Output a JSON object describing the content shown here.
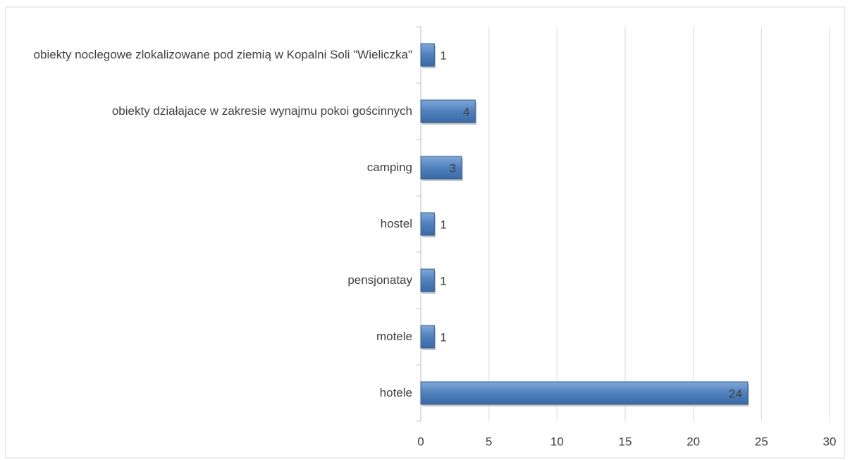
{
  "chart_data": {
    "type": "bar",
    "orientation": "horizontal",
    "categories": [
      "hotele",
      "motele",
      "pensjonatay",
      "hostel",
      "camping",
      "obiekty działajace w zakresie wynajmu pokoi gościnnych",
      "obiekty noclegowe zlokalizowane pod ziemią w Kopalni Soli \"Wieliczka\""
    ],
    "values": [
      24,
      1,
      1,
      1,
      3,
      4,
      1
    ],
    "color": "#4f81bd",
    "xlim": [
      0,
      30
    ],
    "xticks": [
      0,
      5,
      10,
      15,
      20,
      25,
      30
    ],
    "grid": true
  }
}
